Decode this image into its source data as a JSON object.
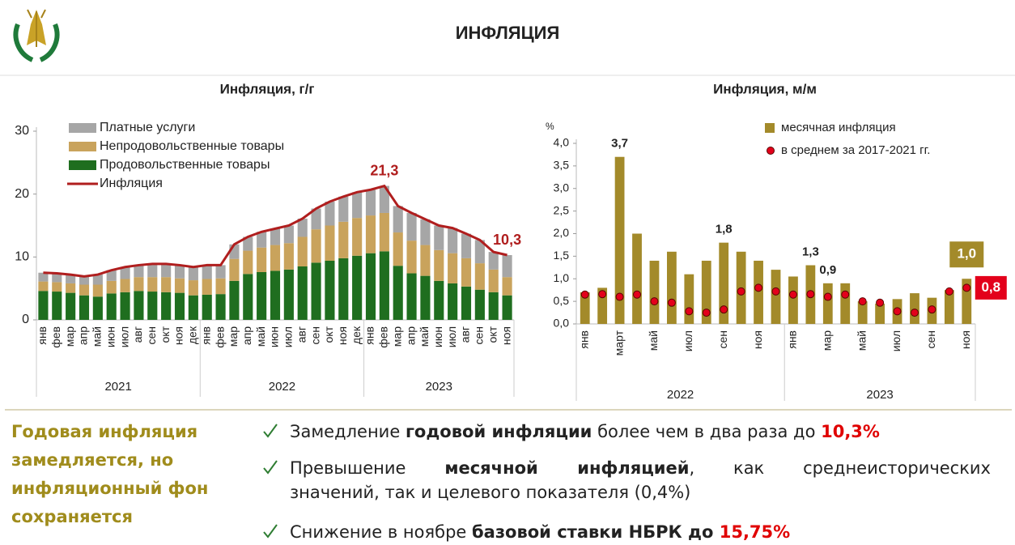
{
  "header": {
    "title": "ИНФЛЯЦИЯ"
  },
  "chart_data": [
    {
      "type": "bar",
      "stacked": true,
      "title": "Инфляция, г/г",
      "groups": [
        {
          "label": "2021",
          "categories": [
            "янв",
            "фев",
            "мар",
            "апр",
            "май",
            "июн",
            "июл",
            "авг",
            "сен",
            "окт",
            "ноя",
            "дек"
          ]
        },
        {
          "label": "2022",
          "categories": [
            "янв",
            "фев",
            "мар",
            "апр",
            "май",
            "июн",
            "июл",
            "авг",
            "сен",
            "окт",
            "ноя",
            "дек"
          ]
        },
        {
          "label": "2023",
          "categories": [
            "янв",
            "фев",
            "мар",
            "апр",
            "май",
            "июн",
            "июл",
            "авг",
            "сен",
            "окт",
            "ноя"
          ]
        }
      ],
      "series": [
        {
          "name": "Платные услуги",
          "color": "#a6a6a6",
          "values": [
            1.4,
            1.4,
            1.4,
            1.3,
            1.6,
            1.7,
            1.9,
            1.9,
            2.1,
            2.1,
            2.1,
            2.1,
            2.2,
            2.1,
            2.3,
            2.2,
            2.5,
            2.6,
            2.8,
            2.9,
            3.3,
            3.8,
            4.0,
            4.1,
            4.1,
            4.3,
            4.2,
            4.4,
            4.1,
            3.9,
            4.0,
            3.9,
            3.7,
            2.8,
            3.5
          ]
        },
        {
          "name": "Непродовольственные товары",
          "color": "#c9a35c",
          "values": [
            1.5,
            1.5,
            1.5,
            1.7,
            1.9,
            2.0,
            2.1,
            2.2,
            2.3,
            2.4,
            2.3,
            2.4,
            2.5,
            2.5,
            3.5,
            3.7,
            3.9,
            4.1,
            4.2,
            4.7,
            5.3,
            5.6,
            5.8,
            6.0,
            6.0,
            6.1,
            5.3,
            5.2,
            4.9,
            4.9,
            4.8,
            4.5,
            4.2,
            3.6,
            2.9
          ]
        },
        {
          "name": "Продовольственные товары",
          "color": "#1f6e1f",
          "values": [
            4.6,
            4.5,
            4.3,
            3.9,
            3.7,
            4.2,
            4.4,
            4.6,
            4.5,
            4.4,
            4.3,
            3.9,
            4.0,
            4.1,
            6.2,
            7.3,
            7.6,
            7.8,
            8.0,
            8.5,
            9.1,
            9.4,
            9.8,
            10.2,
            10.6,
            10.9,
            8.6,
            7.4,
            7.0,
            6.2,
            5.8,
            5.3,
            4.8,
            4.4,
            3.9
          ]
        },
        {
          "name": "Инфляция",
          "type": "line",
          "color": "#b01e1e",
          "values": [
            7.5,
            7.4,
            7.2,
            6.9,
            7.2,
            7.9,
            8.4,
            8.7,
            8.9,
            8.9,
            8.7,
            8.4,
            8.7,
            8.7,
            12.0,
            13.2,
            14.0,
            14.5,
            15.0,
            16.1,
            17.7,
            18.8,
            19.6,
            20.3,
            20.7,
            21.3,
            18.1,
            17.0,
            16.0,
            15.0,
            14.6,
            13.7,
            12.7,
            10.8,
            10.3
          ],
          "value_labels": [
            null,
            null,
            null,
            null,
            null,
            null,
            null,
            null,
            null,
            null,
            null,
            null,
            null,
            null,
            null,
            null,
            null,
            null,
            null,
            null,
            null,
            null,
            null,
            null,
            null,
            "21,3",
            null,
            null,
            null,
            null,
            null,
            null,
            null,
            null,
            "10,3"
          ]
        }
      ],
      "ylim": [
        0,
        30
      ],
      "yticks": [
        0,
        10,
        20,
        30
      ]
    },
    {
      "type": "bar",
      "title": "Инфляция, м/м",
      "unit_label": "%",
      "groups": [
        {
          "label": "2022",
          "categories": [
            "янв",
            null,
            "март",
            null,
            "май",
            null,
            "июл",
            null,
            "сен",
            null,
            "ноя",
            null
          ]
        },
        {
          "label": "2023",
          "categories": [
            "янв",
            null,
            "мар",
            null,
            "май",
            null,
            "июл",
            null,
            "сен",
            null,
            "ноя"
          ]
        }
      ],
      "series": [
        {
          "name": "месячная инфляция",
          "color": "#a38a2a",
          "values": [
            0.7,
            0.8,
            3.7,
            2.0,
            1.4,
            1.6,
            1.1,
            1.4,
            1.8,
            1.6,
            1.4,
            1.2,
            1.05,
            1.3,
            0.9,
            0.9,
            0.5,
            0.45,
            0.55,
            0.68,
            0.58,
            0.75,
            1.0
          ],
          "value_labels": [
            null,
            null,
            "3,7",
            null,
            null,
            null,
            null,
            null,
            "1,8",
            null,
            null,
            null,
            null,
            "1,3",
            "0,9",
            null,
            null,
            null,
            null,
            null,
            null,
            null,
            "1,0"
          ]
        },
        {
          "name": "в среднем за 2017-2021 гг.",
          "type": "scatter",
          "color": "#e3001b",
          "values": [
            0.65,
            0.66,
            0.6,
            0.65,
            0.5,
            0.47,
            0.28,
            0.25,
            0.32,
            0.72,
            0.8,
            0.72,
            0.65,
            0.66,
            0.6,
            0.65,
            0.5,
            0.47,
            0.28,
            0.25,
            0.32,
            0.72,
            0.8
          ],
          "value_labels": [
            null,
            null,
            null,
            null,
            null,
            null,
            null,
            null,
            null,
            null,
            null,
            null,
            null,
            null,
            null,
            null,
            null,
            null,
            null,
            null,
            null,
            null,
            "0,8"
          ]
        }
      ],
      "ylim": [
        0,
        4
      ],
      "yticks": [
        {
          "value": 0,
          "label": "0,0"
        },
        {
          "value": 0.5,
          "label": "0,5"
        },
        {
          "value": 1,
          "label": "1,0"
        },
        {
          "value": 1.5,
          "label": "1,5"
        },
        {
          "value": 2,
          "label": "2,0"
        },
        {
          "value": 2.5,
          "label": "2,5"
        },
        {
          "value": 3,
          "label": "3,0"
        },
        {
          "value": 3.5,
          "label": "3,5"
        },
        {
          "value": 4,
          "label": "4,0"
        }
      ]
    }
  ],
  "summary": [
    "Годовая инфляция",
    "замедляется, но",
    "инфляционный фон",
    "сохраняется"
  ],
  "bullets": [
    [
      [
        {
          "text": "Замедление "
        },
        {
          "text": "годовой инфляции",
          "style": "bold"
        },
        {
          "text": " более чем в два раза до "
        },
        {
          "text": "10,3%",
          "style": "accent"
        }
      ]
    ],
    [
      [
        {
          "text": "Превышение "
        },
        {
          "text": "месячной инфляцией",
          "style": "bold"
        },
        {
          "text": ", как среднеисторических"
        }
      ],
      [
        {
          "text": "значений, так и целевого показателя (0,4%)"
        }
      ]
    ],
    [
      [
        {
          "text": "Снижение в ноябре "
        },
        {
          "text": "базовой ставки НБРК до ",
          "style": "bold"
        },
        {
          "text": "15,75%",
          "style": "accent"
        }
      ]
    ]
  ]
}
